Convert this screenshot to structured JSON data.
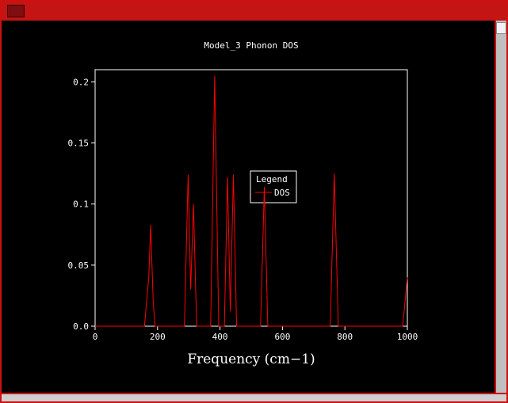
{
  "window": {
    "title": "",
    "colors": {
      "chrome_red": "#c41414",
      "titlebar_button_red": "#7f0f0f",
      "curve_red": "#ff0000",
      "axes_white": "#ffffff",
      "canvas_black": "#000000",
      "scrollbar_gray": "#bfbfbf"
    }
  },
  "chart_data": {
    "type": "line",
    "title": "Model_3 Phonon DOS",
    "xlabel": "Frequency (cm−1)",
    "ylabel": "",
    "xlim": [
      0,
      1000
    ],
    "ylim": [
      0,
      0.21
    ],
    "xticks": [
      0,
      200,
      400,
      600,
      800,
      1000
    ],
    "xtick_labels": [
      "0",
      "200",
      "400",
      "600",
      "800",
      "1000"
    ],
    "yticks": [
      0,
      0.05,
      0.1,
      0.15,
      0.2
    ],
    "ytick_labels": [
      "0.0",
      "0.05",
      "0.1",
      "0.15",
      "0.2"
    ],
    "grid": false,
    "legend": {
      "title": "Legend",
      "position": "inside-center",
      "entries": [
        {
          "label": "DOS",
          "color": "#ff0000"
        }
      ]
    },
    "series": [
      {
        "name": "DOS",
        "color": "#ff0000",
        "points": [
          [
            0,
            0
          ],
          [
            158,
            0
          ],
          [
            172,
            0.041
          ],
          [
            178,
            0.083
          ],
          [
            186,
            0.02
          ],
          [
            192,
            0
          ],
          [
            286,
            0
          ],
          [
            298,
            0.124
          ],
          [
            306,
            0.03
          ],
          [
            315,
            0.1
          ],
          [
            325,
            0
          ],
          [
            370,
            0
          ],
          [
            383,
            0.205
          ],
          [
            396,
            0
          ],
          [
            414,
            0
          ],
          [
            424,
            0.122
          ],
          [
            433,
            0.012
          ],
          [
            443,
            0.124
          ],
          [
            453,
            0
          ],
          [
            530,
            0
          ],
          [
            542,
            0.114
          ],
          [
            553,
            0
          ],
          [
            753,
            0
          ],
          [
            766,
            0.125
          ],
          [
            779,
            0
          ],
          [
            985,
            0
          ],
          [
            1000,
            0.04
          ]
        ]
      }
    ]
  }
}
